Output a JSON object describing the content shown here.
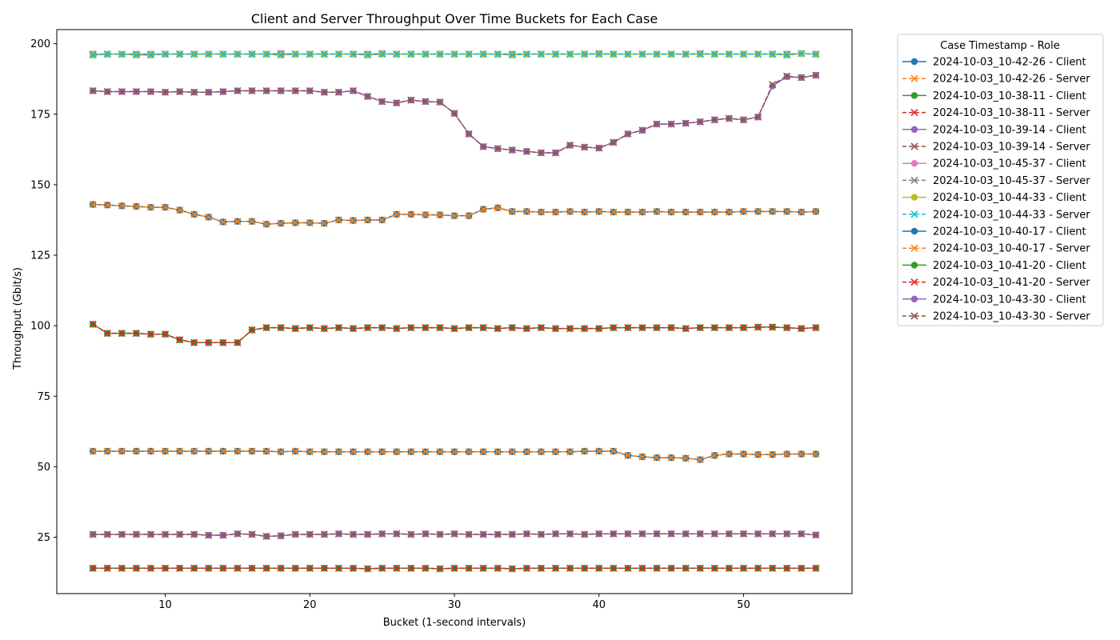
{
  "chart_data": {
    "type": "line",
    "title": "Client and Server Throughput Over Time Buckets for Each Case",
    "xlabel": "Bucket (1-second intervals)",
    "ylabel": "Throughput (Gbit/s)",
    "xlim": [
      2.5,
      57.5
    ],
    "ylim": [
      5,
      205
    ],
    "xticks": [
      10,
      20,
      30,
      40,
      50
    ],
    "yticks": [
      25,
      50,
      75,
      100,
      125,
      150,
      175,
      200
    ],
    "grid": false,
    "legend_title": "Case Timestamp - Role",
    "legend_position": "outside-top-right",
    "x": [
      5,
      6,
      7,
      8,
      9,
      10,
      11,
      12,
      13,
      14,
      15,
      16,
      17,
      18,
      19,
      20,
      21,
      22,
      23,
      24,
      25,
      26,
      27,
      28,
      29,
      30,
      31,
      32,
      33,
      34,
      35,
      36,
      37,
      38,
      39,
      40,
      41,
      42,
      43,
      44,
      45,
      46,
      47,
      48,
      49,
      50,
      51,
      52,
      53,
      54,
      55
    ],
    "series": [
      {
        "name": "2024-10-03_10-42-26 - Client",
        "color": "#1f77b4",
        "marker": "circle",
        "dash": "solid",
        "values": [
          55.5,
          55.5,
          55.5,
          55.5,
          55.5,
          55.5,
          55.5,
          55.5,
          55.5,
          55.5,
          55.5,
          55.5,
          55.5,
          55.3,
          55.5,
          55.3,
          55.3,
          55.3,
          55.3,
          55.3,
          55.3,
          55.3,
          55.3,
          55.3,
          55.3,
          55.3,
          55.3,
          55.3,
          55.3,
          55.3,
          55.3,
          55.3,
          55.3,
          55.3,
          55.5,
          55.5,
          55.5,
          54.0,
          53.5,
          53.2,
          53.2,
          53.0,
          52.5,
          54.0,
          54.5,
          54.5,
          54.3,
          54.3,
          54.5,
          54.5,
          54.5
        ]
      },
      {
        "name": "2024-10-03_10-42-26 - Server",
        "color": "#ff7f0e",
        "marker": "x",
        "dash": "dashed",
        "values": [
          55.5,
          55.5,
          55.5,
          55.5,
          55.5,
          55.5,
          55.5,
          55.5,
          55.5,
          55.5,
          55.5,
          55.5,
          55.5,
          55.3,
          55.5,
          55.3,
          55.3,
          55.3,
          55.3,
          55.3,
          55.3,
          55.3,
          55.3,
          55.3,
          55.3,
          55.3,
          55.3,
          55.3,
          55.3,
          55.3,
          55.3,
          55.3,
          55.3,
          55.3,
          55.5,
          55.5,
          55.5,
          54.0,
          53.5,
          53.2,
          53.2,
          53.0,
          52.5,
          54.0,
          54.5,
          54.5,
          54.3,
          54.3,
          54.5,
          54.5,
          54.5
        ]
      },
      {
        "name": "2024-10-03_10-38-11 - Client",
        "color": "#2ca02c",
        "marker": "circle",
        "dash": "solid",
        "values": [
          14.0,
          14.0,
          14.0,
          14.0,
          14.0,
          14.0,
          14.0,
          14.0,
          14.0,
          14.0,
          14.0,
          14.0,
          14.0,
          14.0,
          14.0,
          14.0,
          14.0,
          14.0,
          14.0,
          13.8,
          14.0,
          14.0,
          14.0,
          14.0,
          13.8,
          14.0,
          14.0,
          14.0,
          14.0,
          13.8,
          14.0,
          14.0,
          14.0,
          14.0,
          14.0,
          14.0,
          14.0,
          14.0,
          14.0,
          14.0,
          14.0,
          14.0,
          14.0,
          14.0,
          14.0,
          14.0,
          14.0,
          14.0,
          14.0,
          14.0,
          14.0
        ]
      },
      {
        "name": "2024-10-03_10-38-11 - Server",
        "color": "#d62728",
        "marker": "x",
        "dash": "dashed",
        "values": [
          14.0,
          14.0,
          14.0,
          14.0,
          14.0,
          14.0,
          14.0,
          14.0,
          14.0,
          14.0,
          14.0,
          14.0,
          14.0,
          14.0,
          14.0,
          14.0,
          14.0,
          14.0,
          14.0,
          13.8,
          14.0,
          14.0,
          14.0,
          14.0,
          13.8,
          14.0,
          14.0,
          14.0,
          14.0,
          13.8,
          14.0,
          14.0,
          14.0,
          14.0,
          14.0,
          14.0,
          14.0,
          14.0,
          14.0,
          14.0,
          14.0,
          14.0,
          14.0,
          14.0,
          14.0,
          14.0,
          14.0,
          14.0,
          14.0,
          14.0,
          14.0
        ]
      },
      {
        "name": "2024-10-03_10-39-14 - Client",
        "color": "#9467bd",
        "marker": "circle",
        "dash": "solid",
        "values": [
          26.0,
          26.0,
          26.0,
          26.0,
          26.0,
          26.0,
          26.0,
          26.0,
          25.7,
          25.7,
          26.2,
          26.0,
          25.3,
          25.5,
          26.0,
          26.0,
          26.0,
          26.2,
          26.0,
          26.0,
          26.2,
          26.2,
          26.0,
          26.2,
          26.0,
          26.2,
          26.0,
          26.0,
          26.0,
          26.0,
          26.2,
          26.0,
          26.2,
          26.2,
          26.0,
          26.2,
          26.2,
          26.2,
          26.2,
          26.2,
          26.2,
          26.2,
          26.2,
          26.2,
          26.2,
          26.2,
          26.2,
          26.2,
          26.2,
          26.2,
          25.8
        ]
      },
      {
        "name": "2024-10-03_10-39-14 - Server",
        "color": "#8c564b",
        "marker": "x",
        "dash": "dashed",
        "values": [
          26.0,
          26.0,
          26.0,
          26.0,
          26.0,
          26.0,
          26.0,
          26.0,
          25.7,
          25.7,
          26.2,
          26.0,
          25.3,
          25.5,
          26.0,
          26.0,
          26.0,
          26.2,
          26.0,
          26.0,
          26.2,
          26.2,
          26.0,
          26.2,
          26.0,
          26.2,
          26.0,
          26.0,
          26.0,
          26.0,
          26.2,
          26.0,
          26.2,
          26.2,
          26.0,
          26.2,
          26.2,
          26.2,
          26.2,
          26.2,
          26.2,
          26.2,
          26.2,
          26.2,
          26.2,
          26.2,
          26.2,
          26.2,
          26.2,
          26.2,
          25.8
        ]
      },
      {
        "name": "2024-10-03_10-45-37 - Client",
        "color": "#e377c2",
        "marker": "circle",
        "dash": "solid",
        "values": [
          196.3,
          196.3,
          196.3,
          196.3,
          196.3,
          196.3,
          196.3,
          196.3,
          196.3,
          196.3,
          196.3,
          196.3,
          196.3,
          196.5,
          196.3,
          196.3,
          196.3,
          196.3,
          196.3,
          196.3,
          196.5,
          196.3,
          196.3,
          196.3,
          196.3,
          196.3,
          196.3,
          196.3,
          196.3,
          196.3,
          196.3,
          196.3,
          196.3,
          196.3,
          196.3,
          196.5,
          196.3,
          196.3,
          196.3,
          196.3,
          196.3,
          196.3,
          196.5,
          196.3,
          196.3,
          196.3,
          196.3,
          196.3,
          196.3,
          196.5,
          196.3
        ]
      },
      {
        "name": "2024-10-03_10-45-37 - Server",
        "color": "#7f7f7f",
        "marker": "x",
        "dash": "dashed",
        "values": [
          196.3,
          196.3,
          196.3,
          196.3,
          196.3,
          196.3,
          196.3,
          196.3,
          196.3,
          196.3,
          196.3,
          196.3,
          196.3,
          196.5,
          196.3,
          196.3,
          196.3,
          196.3,
          196.3,
          196.3,
          196.5,
          196.3,
          196.3,
          196.3,
          196.3,
          196.3,
          196.3,
          196.3,
          196.3,
          196.3,
          196.3,
          196.3,
          196.3,
          196.3,
          196.3,
          196.5,
          196.3,
          196.3,
          196.3,
          196.3,
          196.3,
          196.3,
          196.5,
          196.3,
          196.3,
          196.3,
          196.3,
          196.3,
          196.3,
          196.5,
          196.3
        ]
      },
      {
        "name": "2024-10-03_10-44-33 - Client",
        "color": "#bcbd22",
        "marker": "circle",
        "dash": "solid",
        "values": [
          196.0,
          196.3,
          196.3,
          196.0,
          196.0,
          196.3,
          196.3,
          196.3,
          196.3,
          196.3,
          196.3,
          196.3,
          196.3,
          196.0,
          196.3,
          196.3,
          196.3,
          196.3,
          196.3,
          196.0,
          196.3,
          196.3,
          196.3,
          196.3,
          196.3,
          196.3,
          196.3,
          196.3,
          196.3,
          196.0,
          196.3,
          196.3,
          196.3,
          196.3,
          196.3,
          196.3,
          196.3,
          196.3,
          196.3,
          196.3,
          196.3,
          196.3,
          196.3,
          196.3,
          196.3,
          196.3,
          196.3,
          196.3,
          196.0,
          196.5,
          196.3
        ]
      },
      {
        "name": "2024-10-03_10-44-33 - Server",
        "color": "#17becf",
        "marker": "x",
        "dash": "dashed",
        "values": [
          196.0,
          196.3,
          196.3,
          196.0,
          196.0,
          196.3,
          196.3,
          196.3,
          196.3,
          196.3,
          196.3,
          196.3,
          196.3,
          196.0,
          196.3,
          196.3,
          196.3,
          196.3,
          196.3,
          196.0,
          196.3,
          196.3,
          196.3,
          196.3,
          196.3,
          196.3,
          196.3,
          196.3,
          196.3,
          196.0,
          196.3,
          196.3,
          196.3,
          196.3,
          196.3,
          196.3,
          196.3,
          196.3,
          196.3,
          196.3,
          196.3,
          196.3,
          196.3,
          196.3,
          196.3,
          196.3,
          196.3,
          196.3,
          196.0,
          196.5,
          196.3
        ]
      },
      {
        "name": "2024-10-03_10-40-17 - Client",
        "color": "#1f77b4",
        "marker": "circle",
        "dash": "solid",
        "values": [
          143.0,
          142.8,
          142.5,
          142.3,
          142.0,
          142.0,
          141.0,
          139.5,
          138.5,
          136.8,
          137.0,
          137.0,
          136.0,
          136.3,
          136.5,
          136.5,
          136.3,
          137.5,
          137.3,
          137.5,
          137.5,
          139.5,
          139.5,
          139.3,
          139.3,
          139.0,
          139.0,
          141.3,
          141.8,
          140.5,
          140.5,
          140.3,
          140.3,
          140.5,
          140.3,
          140.5,
          140.3,
          140.3,
          140.3,
          140.5,
          140.3,
          140.3,
          140.3,
          140.3,
          140.3,
          140.5,
          140.5,
          140.5,
          140.5,
          140.3,
          140.5
        ]
      },
      {
        "name": "2024-10-03_10-40-17 - Server",
        "color": "#ff7f0e",
        "marker": "x",
        "dash": "dashed",
        "values": [
          143.0,
          142.8,
          142.5,
          142.3,
          142.0,
          142.0,
          141.0,
          139.5,
          138.5,
          136.8,
          137.0,
          137.0,
          136.0,
          136.3,
          136.5,
          136.5,
          136.3,
          137.5,
          137.3,
          137.5,
          137.5,
          139.5,
          139.5,
          139.3,
          139.3,
          139.0,
          139.0,
          141.3,
          141.8,
          140.5,
          140.5,
          140.3,
          140.3,
          140.5,
          140.3,
          140.5,
          140.3,
          140.3,
          140.3,
          140.5,
          140.3,
          140.3,
          140.3,
          140.3,
          140.3,
          140.5,
          140.5,
          140.5,
          140.5,
          140.3,
          140.5
        ]
      },
      {
        "name": "2024-10-03_10-41-20 - Client",
        "color": "#2ca02c",
        "marker": "circle",
        "dash": "solid",
        "values": [
          100.5,
          97.3,
          97.3,
          97.3,
          97.0,
          97.0,
          95.0,
          94.0,
          94.0,
          94.0,
          94.0,
          98.5,
          99.3,
          99.3,
          99.0,
          99.3,
          99.0,
          99.3,
          99.0,
          99.3,
          99.3,
          99.0,
          99.3,
          99.3,
          99.3,
          99.0,
          99.3,
          99.3,
          99.0,
          99.3,
          99.0,
          99.3,
          99.0,
          99.0,
          99.0,
          99.0,
          99.3,
          99.3,
          99.3,
          99.3,
          99.3,
          99.0,
          99.3,
          99.3,
          99.3,
          99.3,
          99.5,
          99.5,
          99.3,
          99.0,
          99.3
        ]
      },
      {
        "name": "2024-10-03_10-41-20 - Server",
        "color": "#d62728",
        "marker": "x",
        "dash": "dashed",
        "values": [
          100.5,
          97.3,
          97.3,
          97.3,
          97.0,
          97.0,
          95.0,
          94.0,
          94.0,
          94.0,
          94.0,
          98.5,
          99.3,
          99.3,
          99.0,
          99.3,
          99.0,
          99.3,
          99.0,
          99.3,
          99.3,
          99.0,
          99.3,
          99.3,
          99.3,
          99.0,
          99.3,
          99.3,
          99.0,
          99.3,
          99.0,
          99.3,
          99.0,
          99.0,
          99.0,
          99.0,
          99.3,
          99.3,
          99.3,
          99.3,
          99.3,
          99.0,
          99.3,
          99.3,
          99.3,
          99.3,
          99.5,
          99.5,
          99.3,
          99.0,
          99.3
        ]
      },
      {
        "name": "2024-10-03_10-43-30 - Client",
        "color": "#9467bd",
        "marker": "circle",
        "dash": "solid",
        "values": [
          183.3,
          183.0,
          183.0,
          183.0,
          183.0,
          182.8,
          183.0,
          182.8,
          182.8,
          183.0,
          183.3,
          183.3,
          183.3,
          183.3,
          183.3,
          183.3,
          182.8,
          182.8,
          183.3,
          181.3,
          179.5,
          179.0,
          180.0,
          179.5,
          179.3,
          175.3,
          168.0,
          163.5,
          162.8,
          162.3,
          161.8,
          161.3,
          161.3,
          164.0,
          163.3,
          163.0,
          165.0,
          168.0,
          169.3,
          171.5,
          171.5,
          171.8,
          172.3,
          173.0,
          173.5,
          173.0,
          174.0,
          185.0,
          188.3,
          188.0,
          188.8
        ]
      },
      {
        "name": "2024-10-03_10-43-30 - Server",
        "color": "#8c564b",
        "marker": "x",
        "dash": "dashed",
        "values": [
          183.3,
          183.0,
          183.0,
          183.0,
          183.0,
          182.8,
          183.0,
          182.8,
          182.8,
          183.0,
          183.3,
          183.3,
          183.3,
          183.3,
          183.3,
          183.3,
          182.8,
          182.8,
          183.3,
          181.3,
          179.5,
          179.0,
          180.0,
          179.5,
          179.3,
          175.3,
          168.0,
          163.5,
          162.8,
          162.3,
          161.8,
          161.3,
          161.3,
          164.0,
          163.3,
          163.0,
          165.0,
          168.0,
          169.3,
          171.5,
          171.5,
          171.8,
          172.3,
          173.0,
          173.5,
          173.0,
          174.0,
          185.5,
          188.5,
          188.0,
          188.8
        ]
      }
    ]
  }
}
